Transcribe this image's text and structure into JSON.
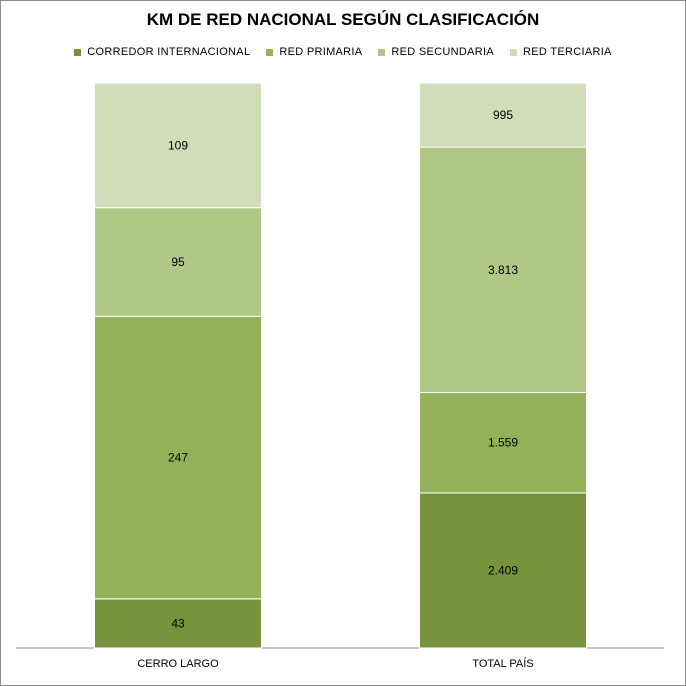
{
  "chart_data": {
    "type": "bar",
    "stacked": true,
    "normalized": true,
    "title": "KM DE RED NACIONAL SEGÚN CLASIFICACIÓN",
    "categories": [
      "CERRO LARGO",
      "TOTAL PAÍS"
    ],
    "series": [
      {
        "name": "CORREDOR INTERNACIONAL",
        "color": "#77933c",
        "values": [
          43,
          2409
        ],
        "labels": [
          "43",
          "2.409"
        ]
      },
      {
        "name": "RED PRIMARIA",
        "color": "#94b157",
        "values": [
          247,
          1559
        ],
        "labels": [
          "247",
          "1.559"
        ]
      },
      {
        "name": "RED SECUNDARIA",
        "color": "#b0c786",
        "values": [
          95,
          3813
        ],
        "labels": [
          "95",
          "3.813"
        ]
      },
      {
        "name": "RED TERCIARIA",
        "color": "#d1ddba",
        "values": [
          109,
          995
        ],
        "labels": [
          "109",
          "995"
        ]
      }
    ],
    "legend_position": "top",
    "grid": false
  }
}
